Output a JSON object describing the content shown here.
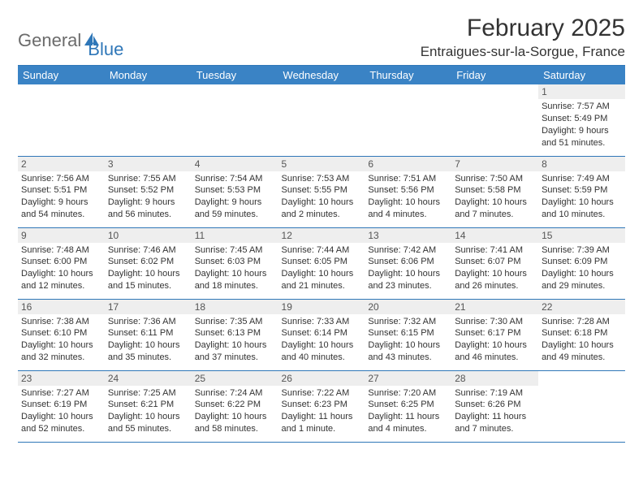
{
  "logo": {
    "text1": "General",
    "text2": "Blue"
  },
  "title": "February 2025",
  "location": "Entraigues-sur-la-Sorgue, France",
  "colors": {
    "header_bg": "#3a83c5",
    "border": "#2f77b8",
    "daynum_bg": "#eeeeee",
    "text": "#333333",
    "logo_gray": "#6b6b6b",
    "logo_blue": "#2f77b8"
  },
  "weekdays": [
    "Sunday",
    "Monday",
    "Tuesday",
    "Wednesday",
    "Thursday",
    "Friday",
    "Saturday"
  ],
  "weeks": [
    [
      null,
      null,
      null,
      null,
      null,
      null,
      {
        "n": "1",
        "sr": "7:57 AM",
        "ss": "5:49 PM",
        "dl1": "9 hours",
        "dl2": "and 51 minutes."
      }
    ],
    [
      {
        "n": "2",
        "sr": "7:56 AM",
        "ss": "5:51 PM",
        "dl1": "9 hours",
        "dl2": "and 54 minutes."
      },
      {
        "n": "3",
        "sr": "7:55 AM",
        "ss": "5:52 PM",
        "dl1": "9 hours",
        "dl2": "and 56 minutes."
      },
      {
        "n": "4",
        "sr": "7:54 AM",
        "ss": "5:53 PM",
        "dl1": "9 hours",
        "dl2": "and 59 minutes."
      },
      {
        "n": "5",
        "sr": "7:53 AM",
        "ss": "5:55 PM",
        "dl1": "10 hours",
        "dl2": "and 2 minutes."
      },
      {
        "n": "6",
        "sr": "7:51 AM",
        "ss": "5:56 PM",
        "dl1": "10 hours",
        "dl2": "and 4 minutes."
      },
      {
        "n": "7",
        "sr": "7:50 AM",
        "ss": "5:58 PM",
        "dl1": "10 hours",
        "dl2": "and 7 minutes."
      },
      {
        "n": "8",
        "sr": "7:49 AM",
        "ss": "5:59 PM",
        "dl1": "10 hours",
        "dl2": "and 10 minutes."
      }
    ],
    [
      {
        "n": "9",
        "sr": "7:48 AM",
        "ss": "6:00 PM",
        "dl1": "10 hours",
        "dl2": "and 12 minutes."
      },
      {
        "n": "10",
        "sr": "7:46 AM",
        "ss": "6:02 PM",
        "dl1": "10 hours",
        "dl2": "and 15 minutes."
      },
      {
        "n": "11",
        "sr": "7:45 AM",
        "ss": "6:03 PM",
        "dl1": "10 hours",
        "dl2": "and 18 minutes."
      },
      {
        "n": "12",
        "sr": "7:44 AM",
        "ss": "6:05 PM",
        "dl1": "10 hours",
        "dl2": "and 21 minutes."
      },
      {
        "n": "13",
        "sr": "7:42 AM",
        "ss": "6:06 PM",
        "dl1": "10 hours",
        "dl2": "and 23 minutes."
      },
      {
        "n": "14",
        "sr": "7:41 AM",
        "ss": "6:07 PM",
        "dl1": "10 hours",
        "dl2": "and 26 minutes."
      },
      {
        "n": "15",
        "sr": "7:39 AM",
        "ss": "6:09 PM",
        "dl1": "10 hours",
        "dl2": "and 29 minutes."
      }
    ],
    [
      {
        "n": "16",
        "sr": "7:38 AM",
        "ss": "6:10 PM",
        "dl1": "10 hours",
        "dl2": "and 32 minutes."
      },
      {
        "n": "17",
        "sr": "7:36 AM",
        "ss": "6:11 PM",
        "dl1": "10 hours",
        "dl2": "and 35 minutes."
      },
      {
        "n": "18",
        "sr": "7:35 AM",
        "ss": "6:13 PM",
        "dl1": "10 hours",
        "dl2": "and 37 minutes."
      },
      {
        "n": "19",
        "sr": "7:33 AM",
        "ss": "6:14 PM",
        "dl1": "10 hours",
        "dl2": "and 40 minutes."
      },
      {
        "n": "20",
        "sr": "7:32 AM",
        "ss": "6:15 PM",
        "dl1": "10 hours",
        "dl2": "and 43 minutes."
      },
      {
        "n": "21",
        "sr": "7:30 AM",
        "ss": "6:17 PM",
        "dl1": "10 hours",
        "dl2": "and 46 minutes."
      },
      {
        "n": "22",
        "sr": "7:28 AM",
        "ss": "6:18 PM",
        "dl1": "10 hours",
        "dl2": "and 49 minutes."
      }
    ],
    [
      {
        "n": "23",
        "sr": "7:27 AM",
        "ss": "6:19 PM",
        "dl1": "10 hours",
        "dl2": "and 52 minutes."
      },
      {
        "n": "24",
        "sr": "7:25 AM",
        "ss": "6:21 PM",
        "dl1": "10 hours",
        "dl2": "and 55 minutes."
      },
      {
        "n": "25",
        "sr": "7:24 AM",
        "ss": "6:22 PM",
        "dl1": "10 hours",
        "dl2": "and 58 minutes."
      },
      {
        "n": "26",
        "sr": "7:22 AM",
        "ss": "6:23 PM",
        "dl1": "11 hours",
        "dl2": "and 1 minute."
      },
      {
        "n": "27",
        "sr": "7:20 AM",
        "ss": "6:25 PM",
        "dl1": "11 hours",
        "dl2": "and 4 minutes."
      },
      {
        "n": "28",
        "sr": "7:19 AM",
        "ss": "6:26 PM",
        "dl1": "11 hours",
        "dl2": "and 7 minutes."
      },
      null
    ]
  ],
  "labels": {
    "sunrise": "Sunrise:",
    "sunset": "Sunset:",
    "daylight": "Daylight:"
  }
}
